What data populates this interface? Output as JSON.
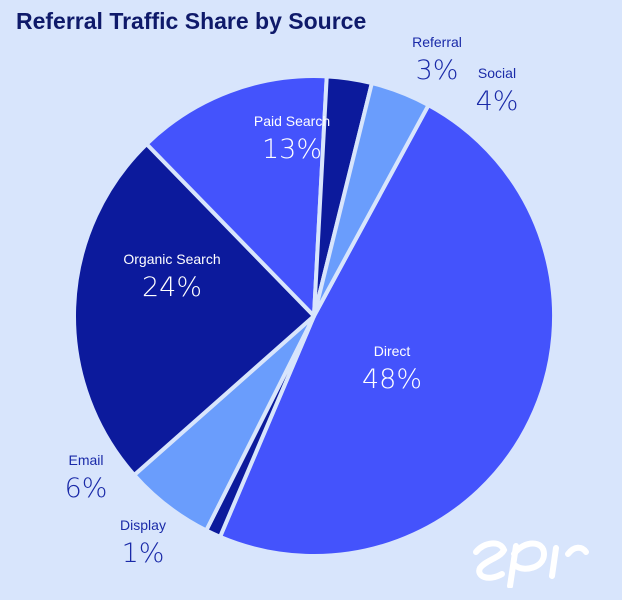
{
  "chart_data": {
    "type": "pie",
    "title": "Referral Traffic Share by Source",
    "slices": [
      {
        "label": "Direct",
        "value": 48,
        "value_label": "48%",
        "color": "#4453fc"
      },
      {
        "label": "Display",
        "value": 1,
        "value_label": "1%",
        "color": "#0c1a9c"
      },
      {
        "label": "Email",
        "value": 6,
        "value_label": "6%",
        "color": "#6a9dfc"
      },
      {
        "label": "Organic Search",
        "value": 24,
        "value_label": "24%",
        "color": "#0c1a9c"
      },
      {
        "label": "Paid Search",
        "value": 13,
        "value_label": "13%",
        "color": "#4453fc"
      },
      {
        "label": "Referral",
        "value": 3,
        "value_label": "3%",
        "color": "#0c1a9c"
      },
      {
        "label": "Social",
        "value": 4,
        "value_label": "4%",
        "color": "#6a9dfc"
      }
    ],
    "colors": {
      "background": "#d8e5fc",
      "title": "#0f1a6a",
      "outside_label": "#1a2aa8",
      "inside_label": "#ffffff"
    }
  },
  "logo": {
    "icon": "epi-logo-icon"
  }
}
